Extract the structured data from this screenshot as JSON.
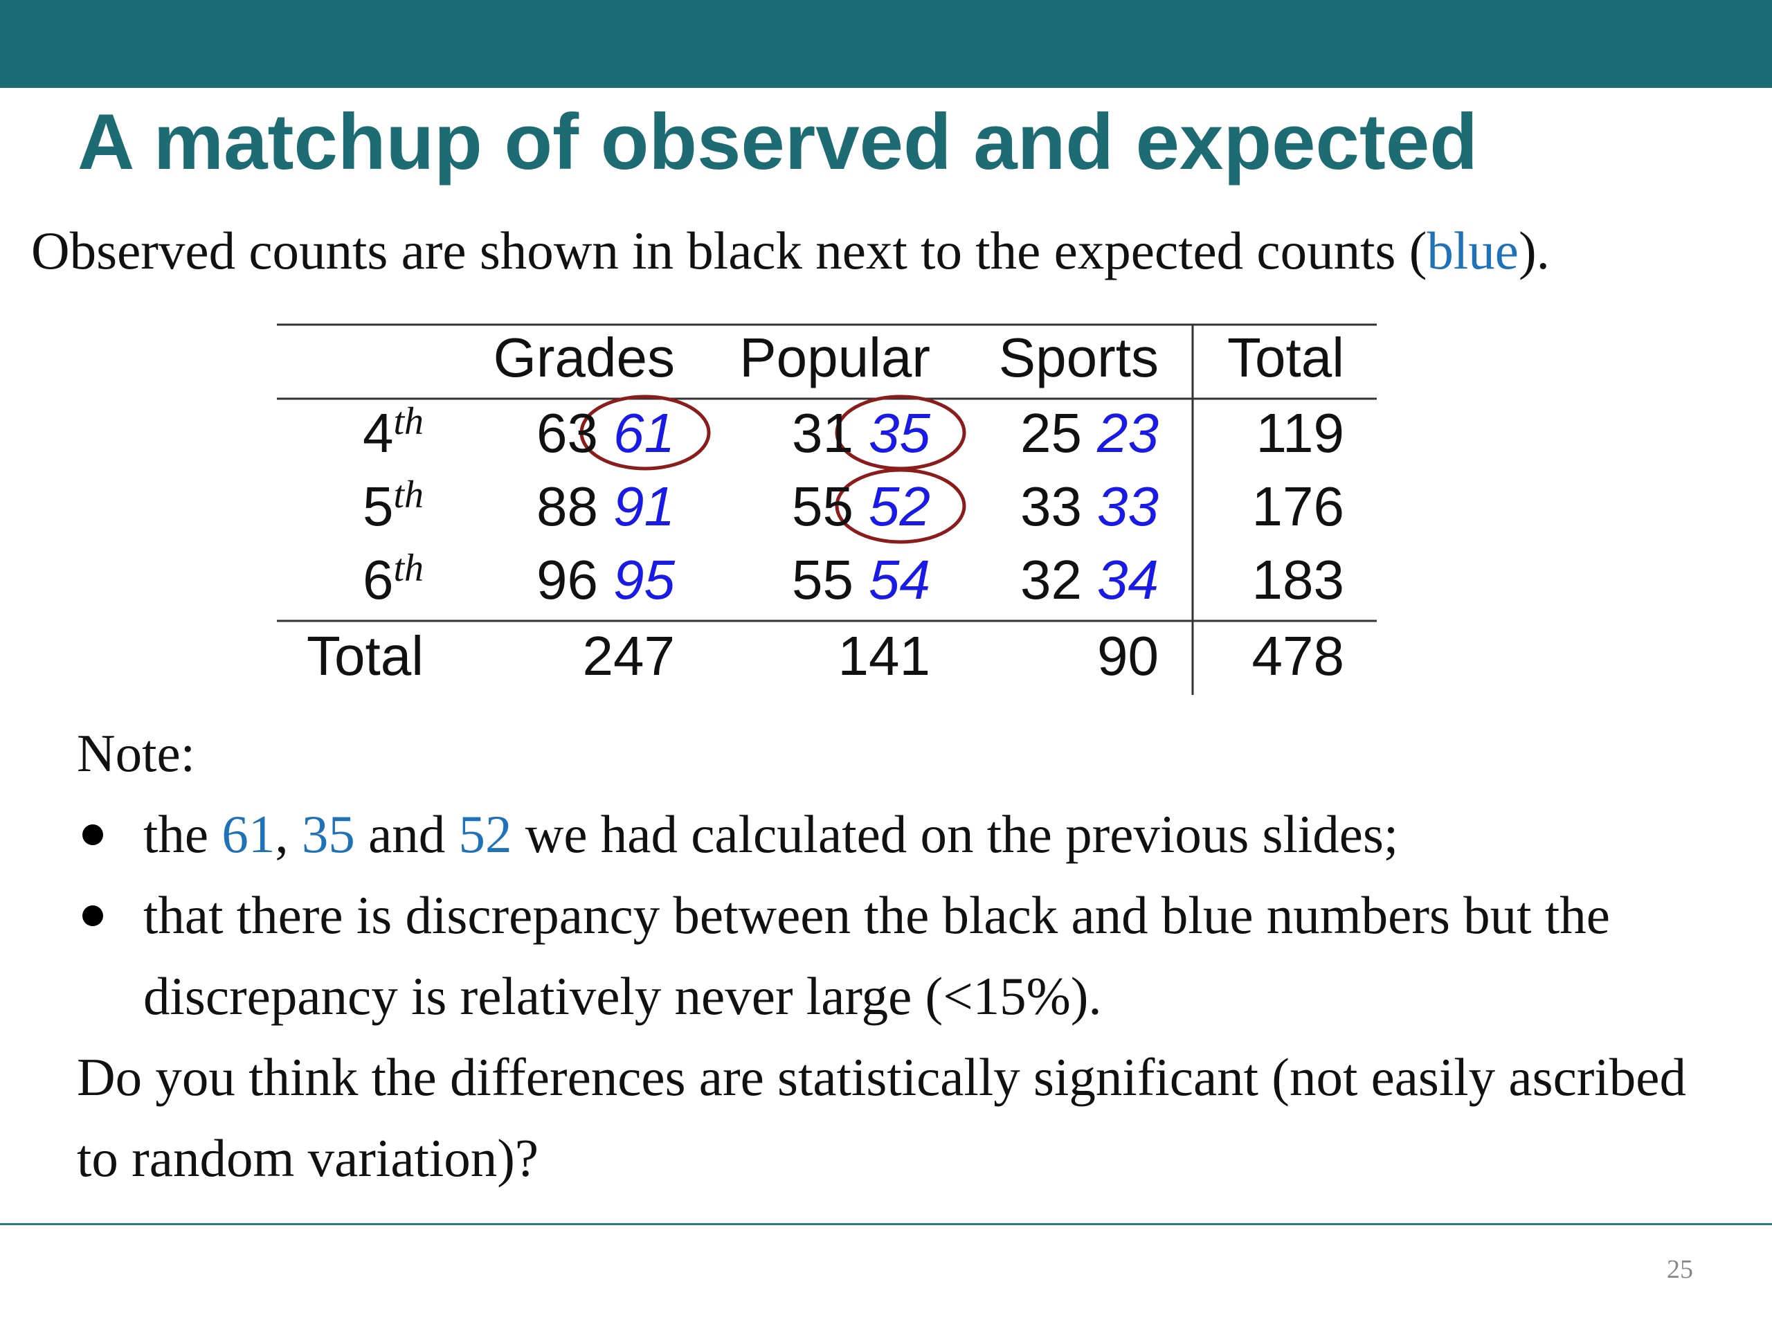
{
  "header": {
    "title": "A matchup of observed and expected"
  },
  "intro": [
    {
      "text": "Observed counts are shown in black next to the expected counts ("
    },
    {
      "text": "blue",
      "highlight": true
    },
    {
      "text": ")."
    }
  ],
  "table": {
    "columns": [
      "Grades",
      "Popular",
      "Sports",
      "Total"
    ],
    "rows": [
      {
        "label": "4",
        "suffix": "th",
        "cells": [
          {
            "observed": 63,
            "expected": 61,
            "circled": true
          },
          {
            "observed": 31,
            "expected": 35,
            "circled": true
          },
          {
            "observed": 25,
            "expected": 23
          }
        ],
        "total": 119
      },
      {
        "label": "5",
        "suffix": "th",
        "cells": [
          {
            "observed": 88,
            "expected": 91
          },
          {
            "observed": 55,
            "expected": 52,
            "circled": true
          },
          {
            "observed": 33,
            "expected": 33
          }
        ],
        "total": 176
      },
      {
        "label": "6",
        "suffix": "th",
        "cells": [
          {
            "observed": 96,
            "expected": 95
          },
          {
            "observed": 55,
            "expected": 54
          },
          {
            "observed": 32,
            "expected": 34
          }
        ],
        "total": 183
      }
    ],
    "total_row": {
      "label": "Total",
      "values": [
        247,
        141,
        90,
        478
      ]
    }
  },
  "note": {
    "heading": "Note:",
    "bullets": [
      [
        {
          "text": "the "
        },
        {
          "text": "61",
          "highlight": true
        },
        {
          "text": ", "
        },
        {
          "text": "35",
          "highlight": true
        },
        {
          "text": " and "
        },
        {
          "text": "52",
          "highlight": true
        },
        {
          "text": " we had calculated on the previous slides;"
        }
      ],
      [
        {
          "text": "that there is discrepancy between the black and blue numbers but the discrepancy is relatively never large (<15%)."
        }
      ]
    ],
    "question": "Do you think the differences are statistically significant (not easily ascribed to random variation)?"
  },
  "footer": {
    "page_number": "25"
  }
}
